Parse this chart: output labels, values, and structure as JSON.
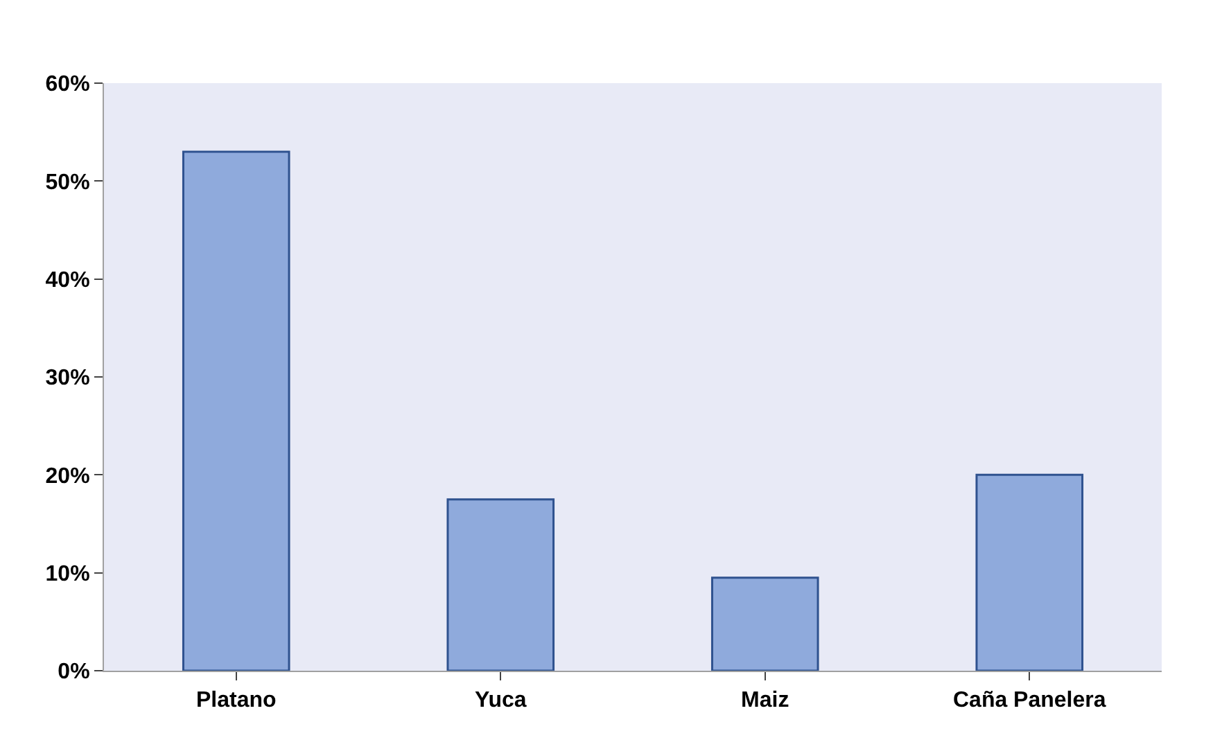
{
  "chart_data": {
    "type": "bar",
    "categories": [
      "Platano",
      "Yuca",
      "Maiz",
      "Caña Panelera"
    ],
    "values": [
      53,
      17.5,
      9.5,
      20
    ],
    "color": "#8faadc",
    "ylim": [
      0,
      60
    ],
    "yticks": [
      {
        "value": 0,
        "label": "0%"
      },
      {
        "value": 10,
        "label": "10%"
      },
      {
        "value": 20,
        "label": "20%"
      },
      {
        "value": 30,
        "label": "30%"
      },
      {
        "value": 40,
        "label": "40%"
      },
      {
        "value": 50,
        "label": "50%"
      },
      {
        "value": 60,
        "label": "60%"
      }
    ],
    "grid": false
  }
}
